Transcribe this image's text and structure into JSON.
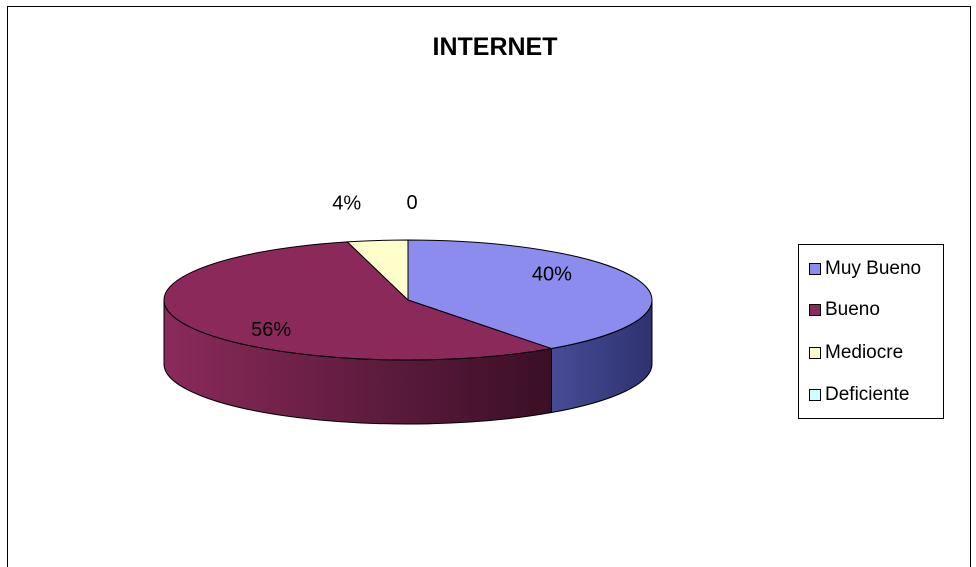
{
  "chart_data": {
    "type": "pie",
    "title": "INTERNET",
    "slices": [
      {
        "name": "Muy Bueno",
        "value": 40,
        "label": "40%",
        "color": "#8b8cee"
      },
      {
        "name": "Bueno",
        "value": 56,
        "label": "56%",
        "color": "#8b2a5a"
      },
      {
        "name": "Mediocre",
        "value": 4,
        "label": "4%",
        "color": "#ffffcc"
      },
      {
        "name": "Deficiente",
        "value": 0,
        "label": "0",
        "color": "#ccffff"
      }
    ],
    "legend_position": "right"
  }
}
